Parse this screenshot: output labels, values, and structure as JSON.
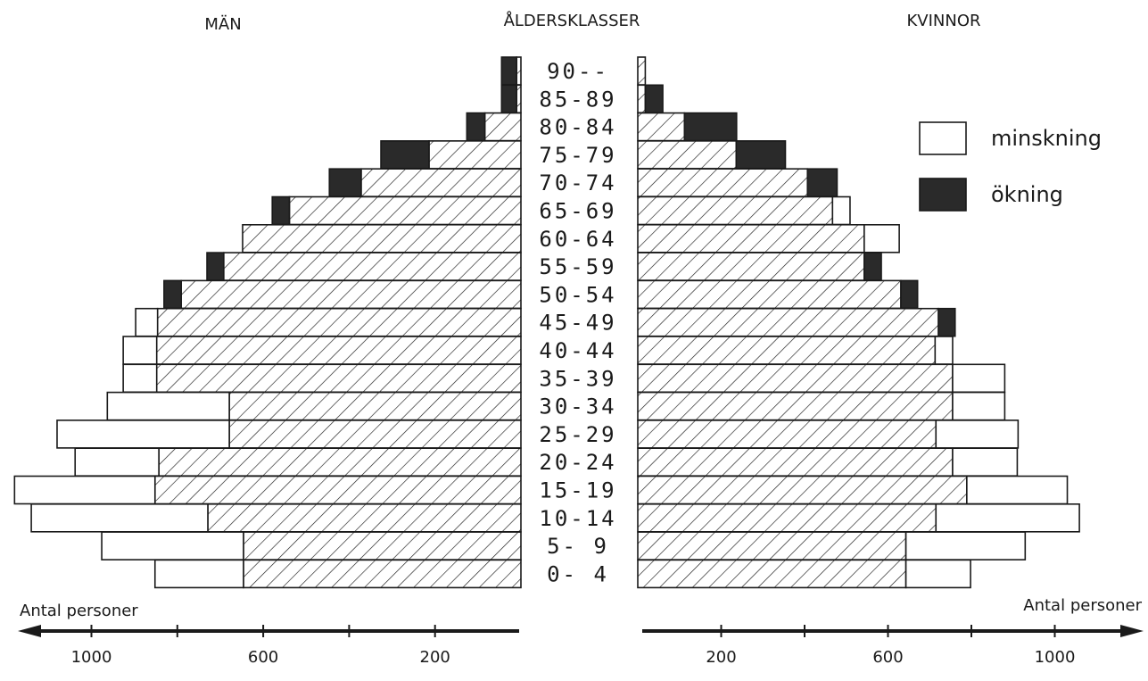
{
  "chart_data": {
    "type": "bar",
    "subtype": "population-pyramid",
    "headers": {
      "left": "MÄN",
      "center": "ÅLDERSKLASSER",
      "right": "KVINNOR"
    },
    "age_groups": [
      "90--",
      "85-89",
      "80-84",
      "75-79",
      "70-74",
      "65-69",
      "60-64",
      "55-59",
      "50-54",
      "45-49",
      "40-44",
      "35-39",
      "30-34",
      "25-29",
      "20-24",
      "15-19",
      "10-14",
      "5- 9",
      "0- 4"
    ],
    "men": {
      "base": [
        10,
        10,
        84,
        214,
        372,
        539,
        648,
        692,
        791,
        846,
        848,
        848,
        679,
        679,
        843,
        852,
        729,
        646,
        646
      ],
      "change": [
        35,
        35,
        42,
        112,
        74,
        40,
        0,
        39,
        40,
        0,
        0,
        0,
        0,
        0,
        0,
        0,
        0,
        0,
        0
      ],
      "loss": [
        0,
        0,
        0,
        0,
        0,
        0,
        0,
        0,
        0,
        51,
        78,
        78,
        284,
        401,
        195,
        327,
        411,
        330,
        206
      ]
    },
    "women": {
      "base": [
        18,
        18,
        112,
        236,
        407,
        467,
        543,
        543,
        631,
        721,
        713,
        755,
        755,
        715,
        755,
        789,
        715,
        643,
        643
      ],
      "change": [
        0,
        42,
        125,
        118,
        71,
        0,
        0,
        41,
        40,
        40,
        0,
        0,
        0,
        0,
        0,
        0,
        0,
        0,
        0
      ],
      "loss": [
        0,
        0,
        0,
        0,
        0,
        42,
        84,
        0,
        0,
        0,
        42,
        125,
        125,
        197,
        155,
        241,
        344,
        286,
        155
      ]
    },
    "axis": {
      "label": "Antal personer",
      "ticks": [
        200,
        600,
        1000
      ],
      "minor_ticks": [
        400,
        800
      ],
      "range": [
        0,
        1150
      ]
    },
    "legend": {
      "position": "top-right",
      "items": [
        {
          "label": "minskning",
          "style": "white"
        },
        {
          "label": "ökning",
          "style": "black"
        }
      ]
    },
    "colors": {
      "ink": "#1a1a1a",
      "hatch": "#1a1a1a",
      "increase": "#2a2a2a",
      "decrease": "#ffffff"
    }
  }
}
